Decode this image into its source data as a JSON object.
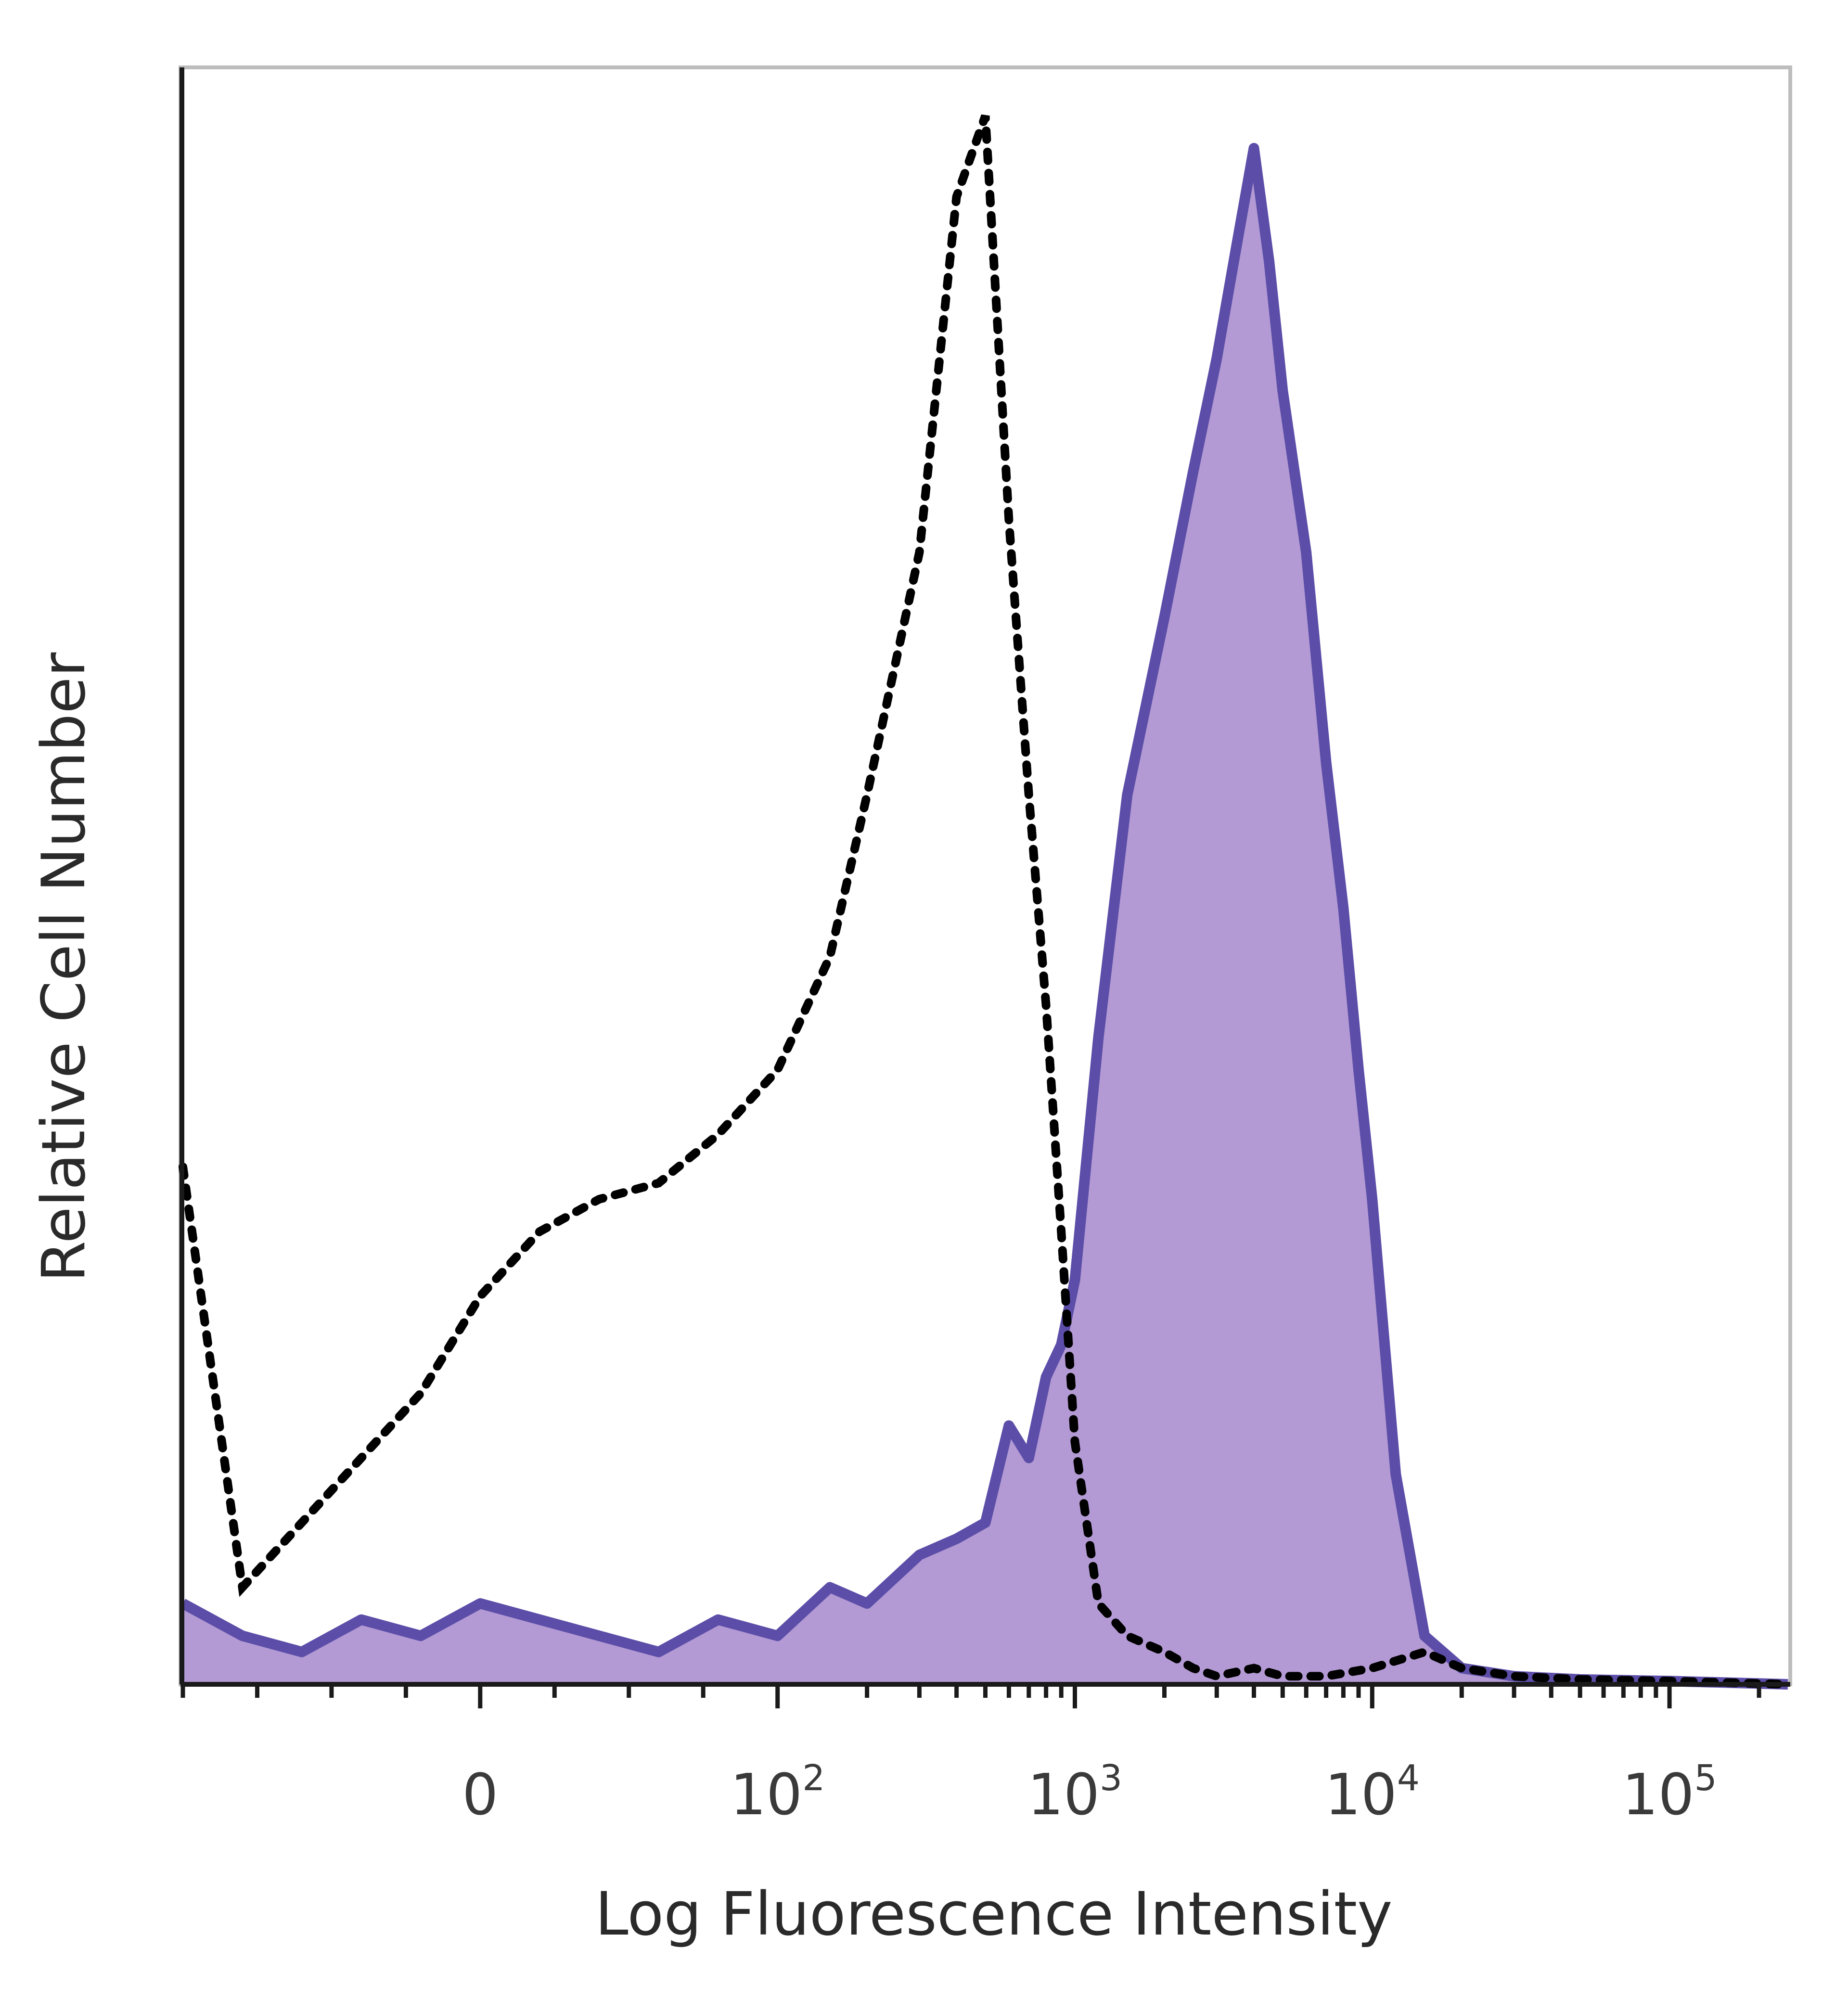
{
  "chart_data": {
    "type": "area",
    "title": "",
    "xlabel": "Log Fluorescence Intensity",
    "ylabel": "Relative Cell Number",
    "x_scale": "biexponential",
    "xlim": [
      -100,
      250000
    ],
    "ylim": [
      0,
      100
    ],
    "x_ticks": [
      {
        "value": 0,
        "base": "0",
        "exp": ""
      },
      {
        "value": 100,
        "base": "10",
        "exp": "2"
      },
      {
        "value": 1000,
        "base": "10",
        "exp": "3"
      },
      {
        "value": 10000,
        "base": "10",
        "exp": "4"
      },
      {
        "value": 100000,
        "base": "10",
        "exp": "5"
      }
    ],
    "grid": false,
    "legend": "none",
    "colors": {
      "stained_fill": "#b39ad4",
      "stained_line": "#5c4ea8",
      "control_line": "#000000",
      "frame": "#bdbdbd"
    },
    "series": [
      {
        "style": "filled-solid",
        "x": [
          -100,
          -80,
          -60,
          -40,
          -20,
          0,
          20,
          40,
          60,
          80,
          100,
          150,
          200,
          300,
          400,
          500,
          600,
          700,
          800,
          900,
          1000,
          1200,
          1500,
          2000,
          2500,
          3000,
          3500,
          4000,
          4500,
          5000,
          6000,
          7000,
          8000,
          9000,
          10000,
          12000,
          15000,
          20000,
          30000,
          50000,
          100000,
          250000
        ],
        "y": [
          5,
          3,
          2,
          4,
          3,
          5,
          4,
          3,
          2,
          4,
          3,
          6,
          5,
          8,
          9,
          10,
          16,
          14,
          19,
          21,
          25,
          40,
          55,
          66,
          75,
          82,
          89,
          95,
          88,
          80,
          70,
          57,
          48,
          38,
          30,
          13,
          3,
          1,
          0.5,
          0.3,
          0.2,
          0
        ]
      },
      {
        "style": "dotted",
        "x": [
          -100,
          -80,
          -60,
          -40,
          -20,
          0,
          20,
          40,
          60,
          80,
          100,
          150,
          200,
          300,
          400,
          500,
          600,
          700,
          800,
          900,
          1000,
          1200,
          1500,
          2000,
          2500,
          3000,
          4000,
          5000,
          7000,
          10000,
          15000,
          20000,
          30000,
          50000,
          100000,
          250000
        ],
        "y": [
          32,
          6,
          10,
          14,
          18,
          24,
          28,
          30,
          31,
          34,
          38,
          45,
          55,
          70,
          92,
          97,
          72,
          55,
          42,
          28,
          15,
          5,
          3,
          2,
          1,
          0.5,
          1,
          0.5,
          0.5,
          1,
          2,
          1,
          0.5,
          0.3,
          0.2,
          0
        ]
      }
    ]
  }
}
